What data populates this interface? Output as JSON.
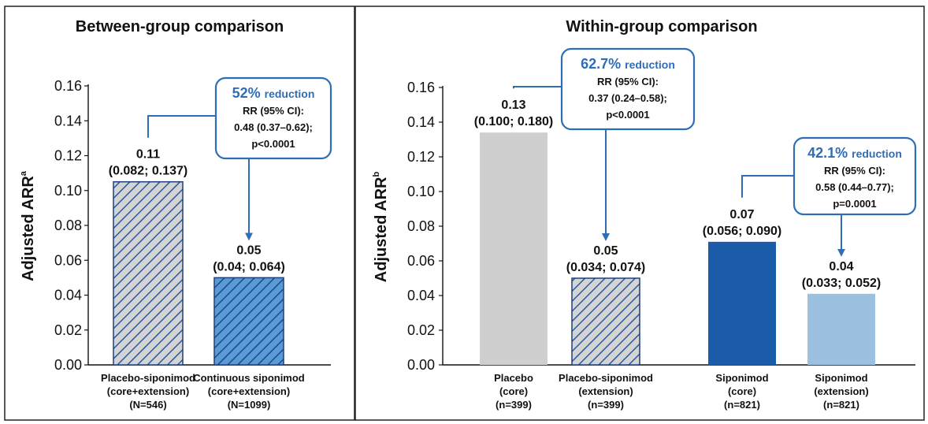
{
  "chart_data": [
    {
      "type": "bar",
      "title": "Between-group comparison",
      "ylabel": "Adjusted ARR",
      "ylabel_sup": "a",
      "ylim": [
        0,
        0.16
      ],
      "yticks": [
        "0.00",
        "0.02",
        "0.04",
        "0.06",
        "0.08",
        "0.10",
        "0.12",
        "0.14",
        "0.16"
      ],
      "bars": [
        {
          "category": [
            "Placebo-siponimod",
            "(core+extension)",
            "(N=546)"
          ],
          "value": 0.105,
          "label": "0.11",
          "ci": "(0.082; 0.137)",
          "fill": "#c9c9c9",
          "hatch": true
        },
        {
          "category": [
            "Continuous siponimod",
            "(core+extension)",
            "(N=1099)"
          ],
          "value": 0.05,
          "label": "0.05",
          "ci": "(0.04; 0.064)",
          "fill": "#4a8fd0",
          "hatch": true
        }
      ],
      "annotation": {
        "pct": "52%",
        "word": "reduction",
        "lines": [
          "RR (95% CI):",
          "0.48 (0.37–0.62);",
          "p<0.0001"
        ]
      }
    },
    {
      "type": "bar",
      "title": "Within-group comparison",
      "ylabel": "Adjusted ARR",
      "ylabel_sup": "b",
      "ylim": [
        0,
        0.16
      ],
      "yticks": [
        "0.00",
        "0.02",
        "0.04",
        "0.06",
        "0.08",
        "0.10",
        "0.12",
        "0.14",
        "0.16"
      ],
      "bars": [
        {
          "category": [
            "Placebo",
            "(core)",
            "(n=399)"
          ],
          "value": 0.134,
          "label": "0.13",
          "ci": "(0.100; 0.180)",
          "fill": "#cfcfcf",
          "hatch": false
        },
        {
          "category": [
            "Placebo-siponimod",
            "(extension)",
            "(n=399)"
          ],
          "value": 0.05,
          "label": "0.05",
          "ci": "(0.034; 0.074)",
          "fill": "#c9c9c9",
          "hatch": true
        },
        {
          "category": [
            "Siponimod",
            "(core)",
            "(n=821)"
          ],
          "value": 0.071,
          "label": "0.07",
          "ci": "(0.056; 0.090)",
          "fill": "#1a5ca8",
          "hatch": false
        },
        {
          "category": [
            "Siponimod",
            "(extension)",
            "(n=821)"
          ],
          "value": 0.041,
          "label": "0.04",
          "ci": "(0.033; 0.052)",
          "fill": "#9cc0e0",
          "hatch": false
        }
      ],
      "annotations": [
        {
          "pct": "62.7%",
          "word": "reduction",
          "lines": [
            "RR (95% CI):",
            "0.37 (0.24–0.58);",
            "p<0.0001"
          ]
        },
        {
          "pct": "42.1%",
          "word": "reduction",
          "lines": [
            "RR (95% CI):",
            "0.58 (0.44–0.77);",
            "p=0.0001"
          ]
        }
      ]
    }
  ]
}
